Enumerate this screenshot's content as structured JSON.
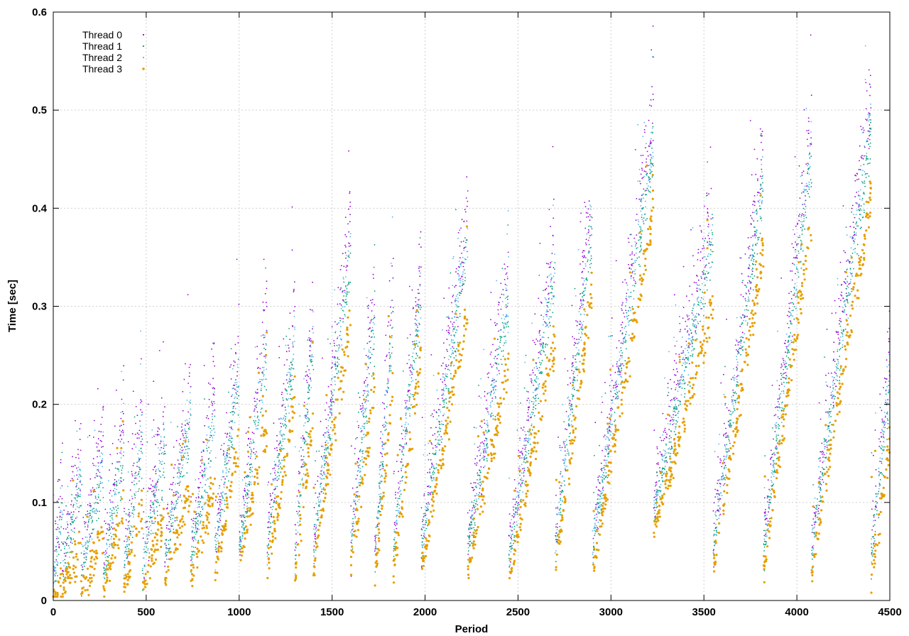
{
  "chart_data": {
    "type": "scatter",
    "title": "",
    "xlabel": "Period",
    "ylabel": "Time [sec]",
    "xlim": [
      0,
      4500
    ],
    "ylim": [
      0,
      0.6
    ],
    "x_ticks": [
      "0",
      "500",
      "1000",
      "1500",
      "2000",
      "2500",
      "3000",
      "3500",
      "4000",
      "4500"
    ],
    "y_ticks": [
      "0",
      "0.1",
      "0.2",
      "0.3",
      "0.4",
      "0.5",
      "0.6"
    ],
    "grid": true,
    "legend_position": "top-left",
    "series": [
      {
        "name": "Thread 0",
        "color": "#9400d3",
        "spread": 0.05,
        "offset": 0.03
      },
      {
        "name": "Thread 1",
        "color": "#009e73",
        "spread": 0.03,
        "offset": 0.0
      },
      {
        "name": "Thread 2",
        "color": "#56b4e9",
        "spread": 0.03,
        "offset": 0.01
      },
      {
        "name": "Thread 3",
        "color": "#e69f00",
        "spread": 0.02,
        "offset": -0.04
      }
    ],
    "cycles": [
      {
        "start": 0,
        "end": 50,
        "low": 0.015,
        "high": 0.08
      },
      {
        "start": 50,
        "end": 150,
        "low": 0.03,
        "high": 0.12
      },
      {
        "start": 150,
        "end": 270,
        "low": 0.03,
        "high": 0.13
      },
      {
        "start": 270,
        "end": 380,
        "low": 0.03,
        "high": 0.15
      },
      {
        "start": 380,
        "end": 480,
        "low": 0.03,
        "high": 0.16
      },
      {
        "start": 480,
        "end": 600,
        "low": 0.03,
        "high": 0.15
      },
      {
        "start": 600,
        "end": 740,
        "low": 0.04,
        "high": 0.18
      },
      {
        "start": 740,
        "end": 870,
        "low": 0.04,
        "high": 0.18
      },
      {
        "start": 870,
        "end": 1000,
        "low": 0.05,
        "high": 0.22
      },
      {
        "start": 1000,
        "end": 1150,
        "low": 0.05,
        "high": 0.25
      },
      {
        "start": 1150,
        "end": 1300,
        "low": 0.05,
        "high": 0.26
      },
      {
        "start": 1300,
        "end": 1400,
        "low": 0.04,
        "high": 0.26
      },
      {
        "start": 1400,
        "end": 1600,
        "low": 0.05,
        "high": 0.35
      },
      {
        "start": 1600,
        "end": 1730,
        "low": 0.05,
        "high": 0.28
      },
      {
        "start": 1730,
        "end": 1830,
        "low": 0.04,
        "high": 0.29
      },
      {
        "start": 1830,
        "end": 1980,
        "low": 0.05,
        "high": 0.31
      },
      {
        "start": 1980,
        "end": 2230,
        "low": 0.05,
        "high": 0.36
      },
      {
        "start": 2230,
        "end": 2450,
        "low": 0.05,
        "high": 0.3
      },
      {
        "start": 2450,
        "end": 2700,
        "low": 0.04,
        "high": 0.33
      },
      {
        "start": 2700,
        "end": 2900,
        "low": 0.05,
        "high": 0.38
      },
      {
        "start": 2900,
        "end": 3230,
        "low": 0.05,
        "high": 0.46
      },
      {
        "start": 3230,
        "end": 3550,
        "low": 0.09,
        "high": 0.36
      },
      {
        "start": 3550,
        "end": 3820,
        "low": 0.05,
        "high": 0.42
      },
      {
        "start": 3820,
        "end": 4080,
        "low": 0.05,
        "high": 0.45
      },
      {
        "start": 4080,
        "end": 4400,
        "low": 0.05,
        "high": 0.48
      },
      {
        "start": 4400,
        "end": 4500,
        "low": 0.04,
        "high": 0.22
      }
    ]
  }
}
